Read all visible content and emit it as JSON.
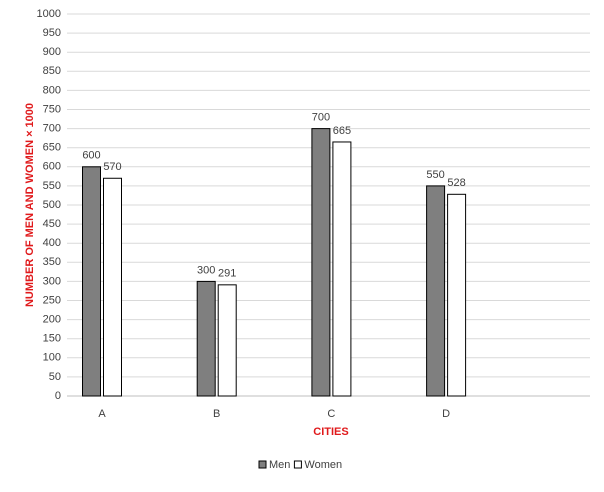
{
  "chart_data": {
    "type": "bar",
    "y_label": "NUMBER  OF MEN AND WOMEN × 1000",
    "x_label": "CITIES",
    "categories": [
      "A",
      "B",
      "C",
      "D"
    ],
    "series": [
      {
        "name": "Men",
        "color": "#7f7f7f",
        "values": [
          600,
          300,
          700,
          550
        ]
      },
      {
        "name": "Women",
        "color": "#ffffff",
        "values": [
          570,
          291,
          665,
          528
        ]
      }
    ],
    "ylim": [
      0,
      1000
    ],
    "yticks": [
      0,
      50,
      100,
      150,
      200,
      250,
      300,
      350,
      400,
      450,
      500,
      550,
      600,
      650,
      700,
      750,
      800,
      850,
      900,
      950,
      1000
    ],
    "grid": true
  }
}
